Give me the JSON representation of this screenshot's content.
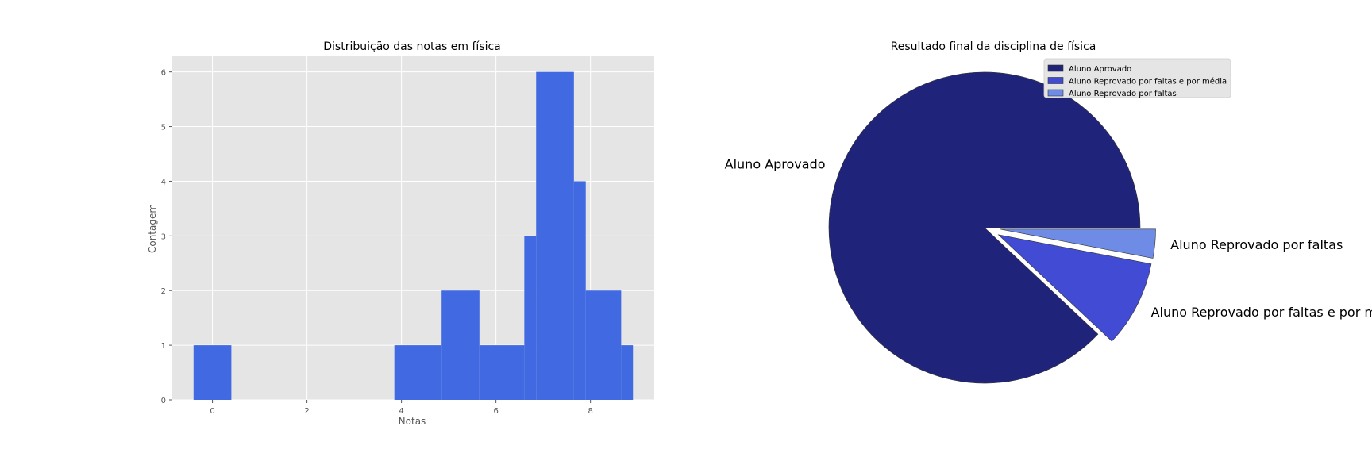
{
  "chart_data": [
    {
      "type": "bar",
      "title": "Distribuição das notas em física",
      "xlabel": "Notas",
      "ylabel": "Contagem",
      "xlim": [
        -0.85,
        9.35
      ],
      "ylim": [
        0,
        6.3
      ],
      "xticks": [
        0,
        2,
        4,
        6,
        8
      ],
      "yticks": [
        0,
        1,
        2,
        3,
        4,
        5,
        6
      ],
      "grid": true,
      "color": "#4169E1",
      "bars": [
        {
          "x0": -0.4,
          "x1": 0.4,
          "count": 1
        },
        {
          "x0": 3.85,
          "x1": 4.85,
          "count": 1
        },
        {
          "x0": 4.85,
          "x1": 5.65,
          "count": 2
        },
        {
          "x0": 5.65,
          "x1": 6.6,
          "count": 1
        },
        {
          "x0": 6.6,
          "x1": 6.85,
          "count": 3
        },
        {
          "x0": 6.85,
          "x1": 7.65,
          "count": 6
        },
        {
          "x0": 7.65,
          "x1": 7.9,
          "count": 4
        },
        {
          "x0": 7.9,
          "x1": 8.65,
          "count": 2
        },
        {
          "x0": 8.65,
          "x1": 8.9,
          "count": 1
        }
      ]
    },
    {
      "type": "pie",
      "title": "Resultado final da disciplina de física",
      "legend_position": "top-right",
      "slices": [
        {
          "label": "Aluno Aprovado",
          "value": 88,
          "color": "#1F237A",
          "explode": 0
        },
        {
          "label": "Aluno Reprovado por faltas e por média",
          "value": 9,
          "color": "#414BD3",
          "explode": 0.1
        },
        {
          "label": "Aluno Reprovado por faltas",
          "value": 3,
          "color": "#6E8CE6",
          "explode": 0.1
        }
      ]
    }
  ]
}
